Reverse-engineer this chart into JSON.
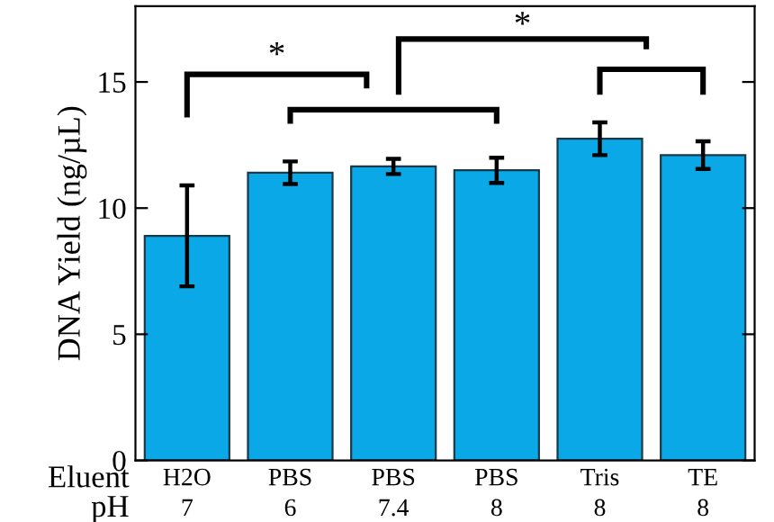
{
  "chart_data": {
    "type": "bar",
    "ylabel": "DNA Yield (ng/µL)",
    "categories": [
      "H2O\n7",
      "PBS\n6",
      "PBS\n7.4",
      "PBS\n8",
      "Tris\n8",
      "TE\n8"
    ],
    "values": [
      8.9,
      11.4,
      11.65,
      11.5,
      12.75,
      12.1
    ],
    "errors": [
      2.0,
      0.45,
      0.3,
      0.5,
      0.65,
      0.55
    ],
    "color": "#0aa8e6",
    "ylim": [
      0,
      18
    ],
    "yticks": [
      0,
      5,
      10,
      15
    ],
    "grid": false,
    "legend": false,
    "annotations": [
      "Eluent\npH",
      "*",
      "*"
    ]
  }
}
